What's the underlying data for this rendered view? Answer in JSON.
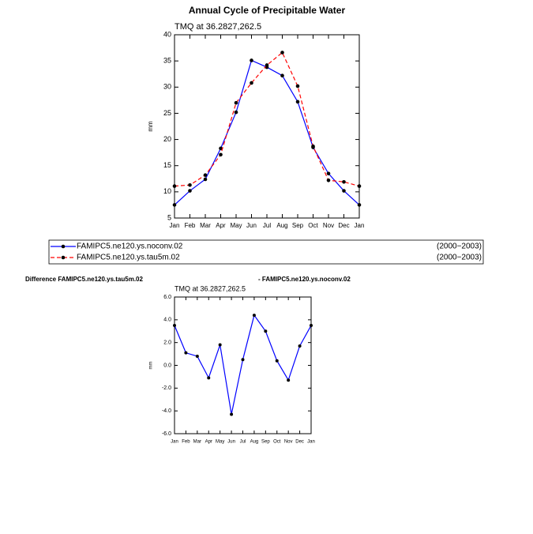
{
  "chart_data": [
    {
      "type": "line",
      "title": "Annual Cycle of Precipitable Water",
      "subtitle": "TMQ at 36.2827,262.5",
      "ylabel": "mm",
      "categories": [
        "Jan",
        "Feb",
        "Mar",
        "Apr",
        "May",
        "Jun",
        "Jul",
        "Aug",
        "Sep",
        "Oct",
        "Nov",
        "Dec",
        "Jan"
      ],
      "series": [
        {
          "name": "FAMIPC5.ne120.ys.noconv.02",
          "period": "(2000−2003)",
          "color": "#0000ff",
          "linestyle": "solid",
          "values": [
            7.5,
            10.2,
            12.4,
            18.3,
            25.2,
            35.1,
            33.8,
            32.2,
            27.2,
            18.5,
            13.5,
            10.2,
            7.5
          ]
        },
        {
          "name": "FAMIPC5.ne120.ys.tau5m.02",
          "period": "(2000−2003)",
          "color": "#ff0000",
          "linestyle": "dashed",
          "values": [
            11.1,
            11.3,
            13.2,
            17.1,
            27.0,
            30.8,
            34.2,
            36.6,
            30.2,
            18.7,
            12.2,
            11.9,
            11.1
          ]
        }
      ],
      "marker_color": "#000000",
      "ylim": [
        5,
        40
      ],
      "yticks": [
        5,
        10,
        15,
        20,
        25,
        30,
        35,
        40
      ],
      "legend": "bottom"
    },
    {
      "type": "line",
      "title": [
        "Difference FAMIPC5.ne120.ys.tau5m.02",
        "- FAMIPC5.ne120.ys.noconv.02"
      ],
      "subtitle": "TMQ at 36.2827,262.5",
      "ylabel": "mm",
      "categories": [
        "Jan",
        "Feb",
        "Mar",
        "Apr",
        "May",
        "Jun",
        "Jul",
        "Aug",
        "Sep",
        "Oct",
        "Nov",
        "Dec",
        "Jan"
      ],
      "series": [
        {
          "color": "#0000ff",
          "linestyle": "solid",
          "values": [
            3.5,
            1.1,
            0.8,
            -1.1,
            1.8,
            -4.3,
            0.5,
            4.4,
            3.0,
            0.4,
            -1.3,
            1.7,
            3.5
          ]
        }
      ],
      "marker_color": "#000000",
      "ylim": [
        -6,
        6
      ],
      "yticks": [
        {
          "value": -6,
          "label": "-6.0"
        },
        {
          "value": -4,
          "label": "-4.0"
        },
        {
          "value": -2,
          "label": "-2.0"
        },
        {
          "value": 0,
          "label": "0.0"
        },
        {
          "value": 2,
          "label": "2.0"
        },
        {
          "value": 4,
          "label": "4.0"
        },
        {
          "value": 6,
          "label": "6.0"
        }
      ]
    }
  ]
}
